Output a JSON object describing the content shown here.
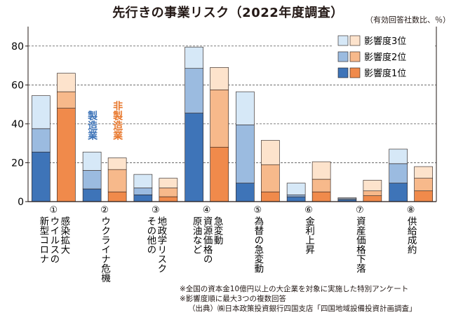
{
  "title": "先行きの事業リスク（2022年度調査）",
  "unit_note": "（有効回答社数比、％）",
  "legend": {
    "rank3": "影響度3位",
    "rank2": "影響度2位",
    "rank1": "影響度1位"
  },
  "series_labels": {
    "manufacturing": "製造業",
    "non_manufacturing": "非製造業"
  },
  "colors": {
    "mfg_rank1": "#3e74b8",
    "mfg_rank2": "#9bbbe0",
    "mfg_rank3": "#d6e8f7",
    "non_rank1": "#f08a4b",
    "non_rank2": "#f7b98b",
    "non_rank3": "#fde3cc",
    "mfg_label": "#3e74b8",
    "non_label": "#e8792e"
  },
  "notes": [
    "※全国の資本金10億円以上の大企業を対象に実施した特別アンケート",
    "※影響度順に最大3つの複数回答",
    "（出典）㈱日本政策投資銀行四国支店「四国地域設備投資計画調査」"
  ],
  "chart_data": {
    "type": "bar",
    "stacked": true,
    "ylim": [
      0,
      90
    ],
    "yticks": [
      0,
      20,
      40,
      60,
      80
    ],
    "grid": "dashed-horizontal",
    "legend_position": "top-right",
    "categories": [
      "①新型コロナウイルスの感染拡大",
      "②ウクライナ危機",
      "③その他の地政学リスク",
      "④原油など資源価格の急変動",
      "⑤為替の急変動",
      "⑥金利上昇",
      "⑦資産価格下落",
      "⑧供給成約"
    ],
    "category_numbers": [
      "①",
      "②",
      "③",
      "④",
      "⑤",
      "⑥",
      "⑦",
      "⑧"
    ],
    "category_lines": [
      [
        "新型コロナ",
        "ウイルスの",
        "感染拡大"
      ],
      [
        "ウクライナ危機"
      ],
      [
        "その他の",
        "地政学リスク"
      ],
      [
        "原油など",
        "資源価格の",
        "急変動"
      ],
      [
        "為替の急変動"
      ],
      [
        "金利上昇"
      ],
      [
        "資産価格下落"
      ],
      [
        "供給成約"
      ]
    ],
    "series": [
      {
        "name": "製造業",
        "rank1": [
          25.5,
          6.5,
          3.5,
          45.5,
          9.5,
          2.5,
          1.0,
          9.5
        ],
        "rank2": [
          12.0,
          9.5,
          3.5,
          23.0,
          30.0,
          1.0,
          0.5,
          10.0
        ],
        "rank3": [
          17.0,
          9.5,
          7.0,
          11.0,
          17.0,
          6.0,
          0.5,
          7.5
        ]
      },
      {
        "name": "非製造業",
        "rank1": [
          48.0,
          5.0,
          2.5,
          28.0,
          5.0,
          5.0,
          3.0,
          5.5
        ],
        "rank2": [
          8.5,
          11.5,
          4.5,
          29.5,
          14.0,
          6.5,
          2.5,
          6.5
        ],
        "rank3": [
          9.5,
          6.0,
          5.0,
          11.5,
          12.5,
          9.0,
          5.5,
          6.0
        ]
      }
    ]
  }
}
